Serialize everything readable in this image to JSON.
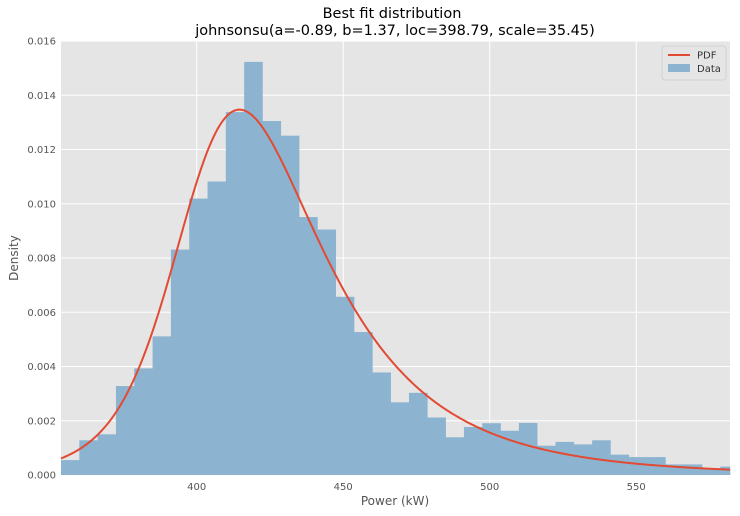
{
  "chart_data": {
    "type": "bar",
    "title": "Best fit distribution",
    "subtitle": "johnsonsu(a=-0.89, b=1.37, loc=398.79, scale=35.45)",
    "xlabel": "Power (kW)",
    "ylabel": "Density",
    "xlim": [
      353.7,
      582
    ],
    "ylim": [
      0,
      0.016
    ],
    "xticks": [
      "400",
      "450",
      "500",
      "550"
    ],
    "yticks": [
      "0.000",
      "0.002",
      "0.004",
      "0.006",
      "0.008",
      "0.010",
      "0.012",
      "0.014",
      "0.016"
    ],
    "grid": true,
    "legend_position": "top-right",
    "colors": {
      "data": "#8cb4d0",
      "pdf": "#e24a33",
      "grid": "#ffffff",
      "background": "#e5e5e5"
    },
    "histogram": {
      "name": "Data",
      "bin_start": 353.7,
      "bin_width": 6.25,
      "densities": [
        0.00055,
        0.00128,
        0.0015,
        0.00328,
        0.00393,
        0.00511,
        0.00831,
        0.01019,
        0.01082,
        0.01338,
        0.01523,
        0.01305,
        0.01251,
        0.00951,
        0.00905,
        0.00657,
        0.00527,
        0.00378,
        0.00268,
        0.00303,
        0.00212,
        0.00139,
        0.00177,
        0.00191,
        0.00163,
        0.00192,
        0.00108,
        0.00122,
        0.00113,
        0.00128,
        0.00075,
        0.00066,
        0.00066,
        0.00039,
        0.00039,
        0.00025,
        0.00031
      ]
    },
    "pdf": {
      "name": "PDF",
      "distribution": "johnsonsu",
      "a": -0.89,
      "b": 1.37,
      "loc": 398.79,
      "scale": 35.45
    }
  }
}
